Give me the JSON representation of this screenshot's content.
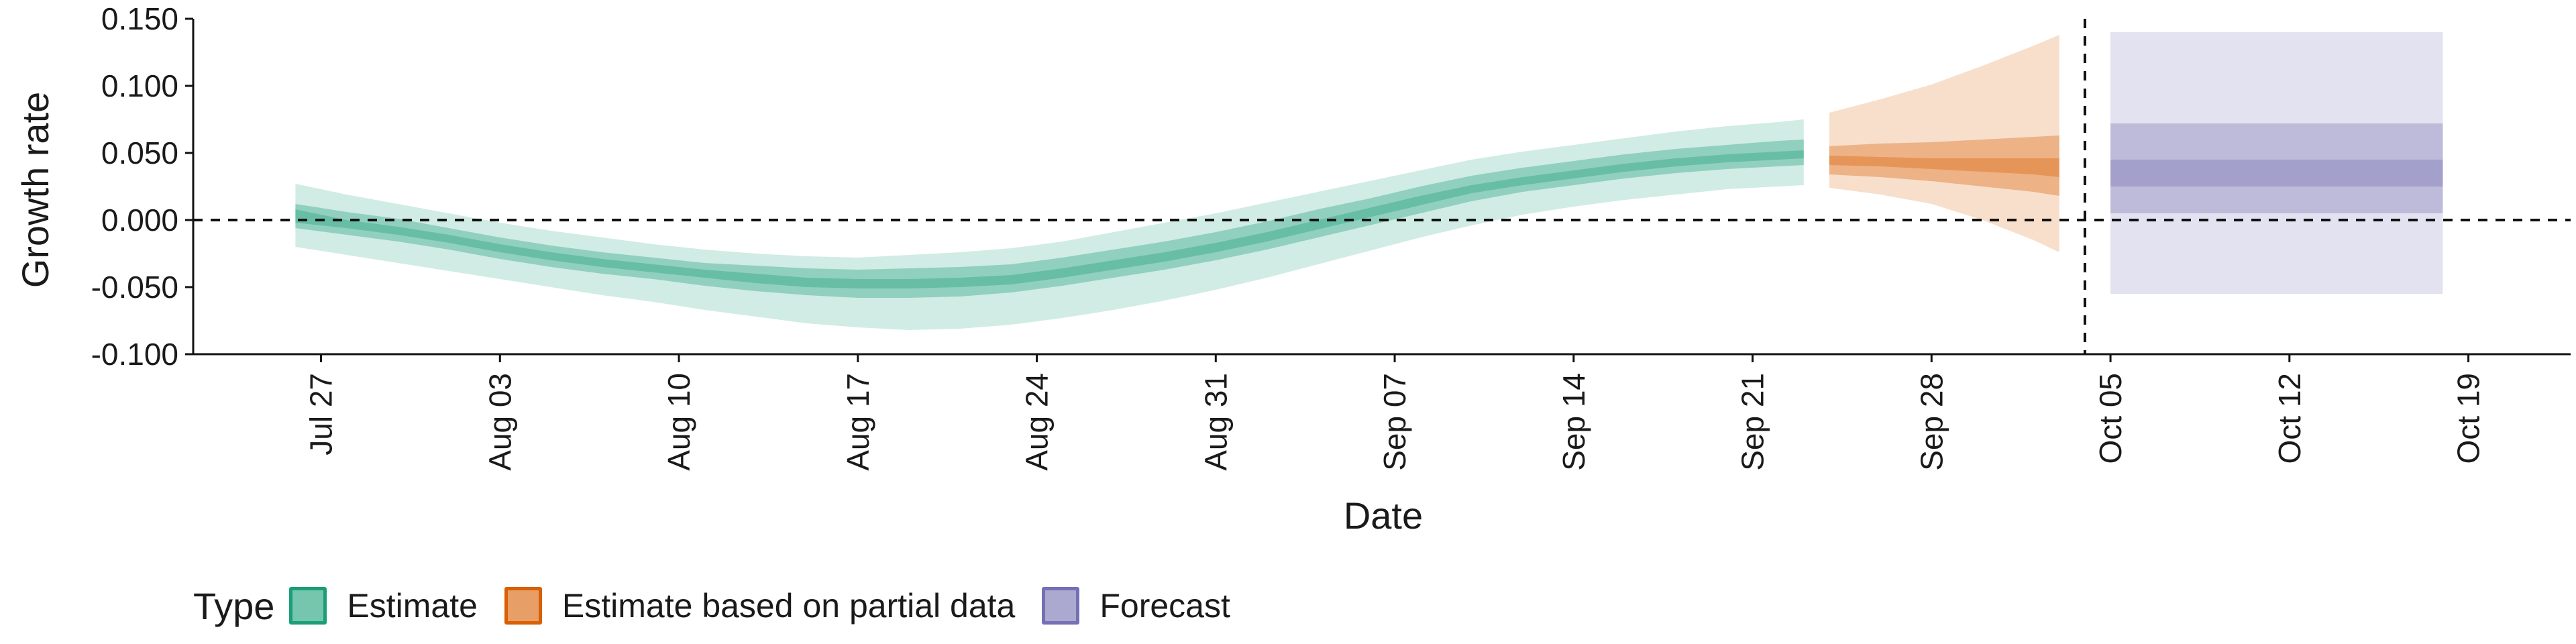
{
  "chart_data": {
    "type": "area",
    "xlabel": "Date",
    "ylabel": "Growth rate",
    "ylim": [
      -0.1,
      0.15
    ],
    "yticks": [
      "-0.100",
      "-0.050",
      "0.000",
      "0.050",
      "0.100",
      "0.150"
    ],
    "xticks": [
      {
        "date": "2020-07-27",
        "label": "Jul 27"
      },
      {
        "date": "2020-08-03",
        "label": "Aug 03"
      },
      {
        "date": "2020-08-10",
        "label": "Aug 10"
      },
      {
        "date": "2020-08-17",
        "label": "Aug 17"
      },
      {
        "date": "2020-08-24",
        "label": "Aug 24"
      },
      {
        "date": "2020-08-31",
        "label": "Aug 31"
      },
      {
        "date": "2020-09-07",
        "label": "Sep 07"
      },
      {
        "date": "2020-09-14",
        "label": "Sep 14"
      },
      {
        "date": "2020-09-21",
        "label": "Sep 21"
      },
      {
        "date": "2020-09-28",
        "label": "Sep 28"
      },
      {
        "date": "2020-10-05",
        "label": "Oct 05"
      },
      {
        "date": "2020-10-12",
        "label": "Oct 12"
      },
      {
        "date": "2020-10-19",
        "label": "Oct 19"
      }
    ],
    "hline_y": 0,
    "vline_date": "2020-10-04",
    "grid": false,
    "legend_placement": "bottom-left",
    "legend_title": "Type",
    "series": [
      {
        "name": "Estimate",
        "color": "#1b9e77",
        "points": [
          {
            "date": "2020-07-26",
            "lo90": -0.02,
            "lo50": -0.006,
            "lo20": -0.002,
            "median": 0.003,
            "hi20": 0.008,
            "hi50": 0.012,
            "hi90": 0.027
          },
          {
            "date": "2020-07-28",
            "lo90": -0.026,
            "lo50": -0.011,
            "lo20": -0.006,
            "median": -0.003,
            "hi20": 0.0,
            "hi50": 0.006,
            "hi90": 0.019
          },
          {
            "date": "2020-07-30",
            "lo90": -0.032,
            "lo50": -0.016,
            "lo20": -0.011,
            "median": -0.008,
            "hi20": -0.005,
            "hi50": 0.001,
            "hi90": 0.012
          },
          {
            "date": "2020-08-01",
            "lo90": -0.038,
            "lo50": -0.022,
            "lo20": -0.017,
            "median": -0.014,
            "hi20": -0.011,
            "hi50": -0.006,
            "hi90": 0.005
          },
          {
            "date": "2020-08-03",
            "lo90": -0.044,
            "lo50": -0.029,
            "lo20": -0.024,
            "median": -0.021,
            "hi20": -0.018,
            "hi50": -0.013,
            "hi90": -0.002
          },
          {
            "date": "2020-08-05",
            "lo90": -0.05,
            "lo50": -0.035,
            "lo20": -0.03,
            "median": -0.027,
            "hi20": -0.024,
            "hi50": -0.019,
            "hi90": -0.008
          },
          {
            "date": "2020-08-07",
            "lo90": -0.056,
            "lo50": -0.04,
            "lo20": -0.035,
            "median": -0.032,
            "hi20": -0.029,
            "hi50": -0.024,
            "hi90": -0.013
          },
          {
            "date": "2020-08-09",
            "lo90": -0.061,
            "lo50": -0.044,
            "lo20": -0.039,
            "median": -0.036,
            "hi20": -0.033,
            "hi50": -0.028,
            "hi90": -0.018
          },
          {
            "date": "2020-08-11",
            "lo90": -0.067,
            "lo50": -0.049,
            "lo20": -0.043,
            "median": -0.04,
            "hi20": -0.037,
            "hi50": -0.032,
            "hi90": -0.022
          },
          {
            "date": "2020-08-13",
            "lo90": -0.072,
            "lo50": -0.053,
            "lo20": -0.047,
            "median": -0.043,
            "hi20": -0.04,
            "hi50": -0.034,
            "hi90": -0.025
          },
          {
            "date": "2020-08-15",
            "lo90": -0.077,
            "lo50": -0.056,
            "lo20": -0.05,
            "median": -0.046,
            "hi20": -0.043,
            "hi50": -0.036,
            "hi90": -0.027
          },
          {
            "date": "2020-08-17",
            "lo90": -0.08,
            "lo50": -0.058,
            "lo20": -0.051,
            "median": -0.047,
            "hi20": -0.044,
            "hi50": -0.037,
            "hi90": -0.028
          },
          {
            "date": "2020-08-19",
            "lo90": -0.082,
            "lo50": -0.058,
            "lo20": -0.051,
            "median": -0.047,
            "hi20": -0.044,
            "hi50": -0.036,
            "hi90": -0.026
          },
          {
            "date": "2020-08-21",
            "lo90": -0.081,
            "lo50": -0.057,
            "lo20": -0.05,
            "median": -0.047,
            "hi20": -0.043,
            "hi50": -0.035,
            "hi90": -0.024
          },
          {
            "date": "2020-08-23",
            "lo90": -0.078,
            "lo50": -0.054,
            "lo20": -0.048,
            "median": -0.045,
            "hi20": -0.041,
            "hi50": -0.033,
            "hi90": -0.021
          },
          {
            "date": "2020-08-25",
            "lo90": -0.073,
            "lo50": -0.049,
            "lo20": -0.043,
            "median": -0.04,
            "hi20": -0.036,
            "hi50": -0.028,
            "hi90": -0.016
          },
          {
            "date": "2020-08-27",
            "lo90": -0.067,
            "lo50": -0.043,
            "lo20": -0.037,
            "median": -0.034,
            "hi20": -0.03,
            "hi50": -0.022,
            "hi90": -0.009
          },
          {
            "date": "2020-08-29",
            "lo90": -0.06,
            "lo50": -0.037,
            "lo20": -0.031,
            "median": -0.027,
            "hi20": -0.024,
            "hi50": -0.016,
            "hi90": -0.002
          },
          {
            "date": "2020-08-31",
            "lo90": -0.052,
            "lo50": -0.03,
            "lo20": -0.024,
            "median": -0.02,
            "hi20": -0.017,
            "hi50": -0.009,
            "hi90": 0.005
          },
          {
            "date": "2020-09-02",
            "lo90": -0.043,
            "lo50": -0.022,
            "lo20": -0.016,
            "median": -0.012,
            "hi20": -0.009,
            "hi50": -0.001,
            "hi90": 0.013
          },
          {
            "date": "2020-09-04",
            "lo90": -0.033,
            "lo50": -0.013,
            "lo20": -0.007,
            "median": -0.004,
            "hi20": 0.0,
            "hi50": 0.008,
            "hi90": 0.021
          },
          {
            "date": "2020-09-06",
            "lo90": -0.023,
            "lo50": -0.004,
            "lo20": 0.002,
            "median": 0.005,
            "hi20": 0.009,
            "hi50": 0.016,
            "hi90": 0.029
          },
          {
            "date": "2020-09-08",
            "lo90": -0.013,
            "lo50": 0.005,
            "lo20": 0.011,
            "median": 0.014,
            "hi20": 0.018,
            "hi50": 0.025,
            "hi90": 0.037
          },
          {
            "date": "2020-09-10",
            "lo90": -0.004,
            "lo50": 0.014,
            "lo20": 0.02,
            "median": 0.023,
            "hi20": 0.026,
            "hi50": 0.033,
            "hi90": 0.045
          },
          {
            "date": "2020-09-12",
            "lo90": 0.004,
            "lo50": 0.021,
            "lo20": 0.026,
            "median": 0.029,
            "hi20": 0.032,
            "hi50": 0.039,
            "hi90": 0.051
          },
          {
            "date": "2020-09-14",
            "lo90": 0.01,
            "lo50": 0.026,
            "lo20": 0.031,
            "median": 0.034,
            "hi20": 0.037,
            "hi50": 0.044,
            "hi90": 0.056
          },
          {
            "date": "2020-09-16",
            "lo90": 0.015,
            "lo50": 0.031,
            "lo20": 0.036,
            "median": 0.039,
            "hi20": 0.042,
            "hi50": 0.049,
            "hi90": 0.061
          },
          {
            "date": "2020-09-18",
            "lo90": 0.019,
            "lo50": 0.035,
            "lo20": 0.04,
            "median": 0.043,
            "hi20": 0.046,
            "hi50": 0.053,
            "hi90": 0.066
          },
          {
            "date": "2020-09-20",
            "lo90": 0.023,
            "lo50": 0.038,
            "lo20": 0.043,
            "median": 0.046,
            "hi20": 0.049,
            "hi50": 0.056,
            "hi90": 0.07
          },
          {
            "date": "2020-09-22",
            "lo90": 0.025,
            "lo50": 0.04,
            "lo20": 0.045,
            "median": 0.048,
            "hi20": 0.051,
            "hi50": 0.059,
            "hi90": 0.073
          },
          {
            "date": "2020-09-23",
            "lo90": 0.026,
            "lo50": 0.041,
            "lo20": 0.046,
            "median": 0.049,
            "hi20": 0.052,
            "hi50": 0.06,
            "hi90": 0.075
          }
        ]
      },
      {
        "name": "Estimate based on partial data",
        "color": "#d95f02",
        "points": [
          {
            "date": "2020-09-24",
            "lo90": 0.024,
            "lo50": 0.034,
            "lo20": 0.041,
            "median": 0.044,
            "hi20": 0.048,
            "hi50": 0.055,
            "hi90": 0.08
          },
          {
            "date": "2020-09-26",
            "lo90": 0.019,
            "lo50": 0.032,
            "lo20": 0.04,
            "median": 0.043,
            "hi20": 0.047,
            "hi50": 0.057,
            "hi90": 0.09
          },
          {
            "date": "2020-09-28",
            "lo90": 0.012,
            "lo50": 0.029,
            "lo20": 0.038,
            "median": 0.042,
            "hi20": 0.046,
            "hi50": 0.058,
            "hi90": 0.101
          },
          {
            "date": "2020-09-30",
            "lo90": 0.0,
            "lo50": 0.025,
            "lo20": 0.036,
            "median": 0.041,
            "hi20": 0.046,
            "hi50": 0.06,
            "hi90": 0.115
          },
          {
            "date": "2020-10-02",
            "lo90": -0.015,
            "lo50": 0.021,
            "lo20": 0.034,
            "median": 0.04,
            "hi20": 0.046,
            "hi50": 0.062,
            "hi90": 0.13
          },
          {
            "date": "2020-10-03",
            "lo90": -0.024,
            "lo50": 0.018,
            "lo20": 0.032,
            "median": 0.04,
            "hi20": 0.046,
            "hi50": 0.063,
            "hi90": 0.138
          }
        ]
      },
      {
        "name": "Forecast",
        "color": "#7570b3",
        "points": [
          {
            "date": "2020-10-05",
            "lo90": -0.055,
            "lo50": 0.005,
            "lo20": 0.025,
            "median": 0.035,
            "hi20": 0.045,
            "hi50": 0.072,
            "hi90": 0.14
          },
          {
            "date": "2020-10-18",
            "lo90": -0.055,
            "lo50": 0.005,
            "lo20": 0.025,
            "median": 0.035,
            "hi20": 0.045,
            "hi50": 0.072,
            "hi90": 0.14
          }
        ]
      }
    ]
  }
}
